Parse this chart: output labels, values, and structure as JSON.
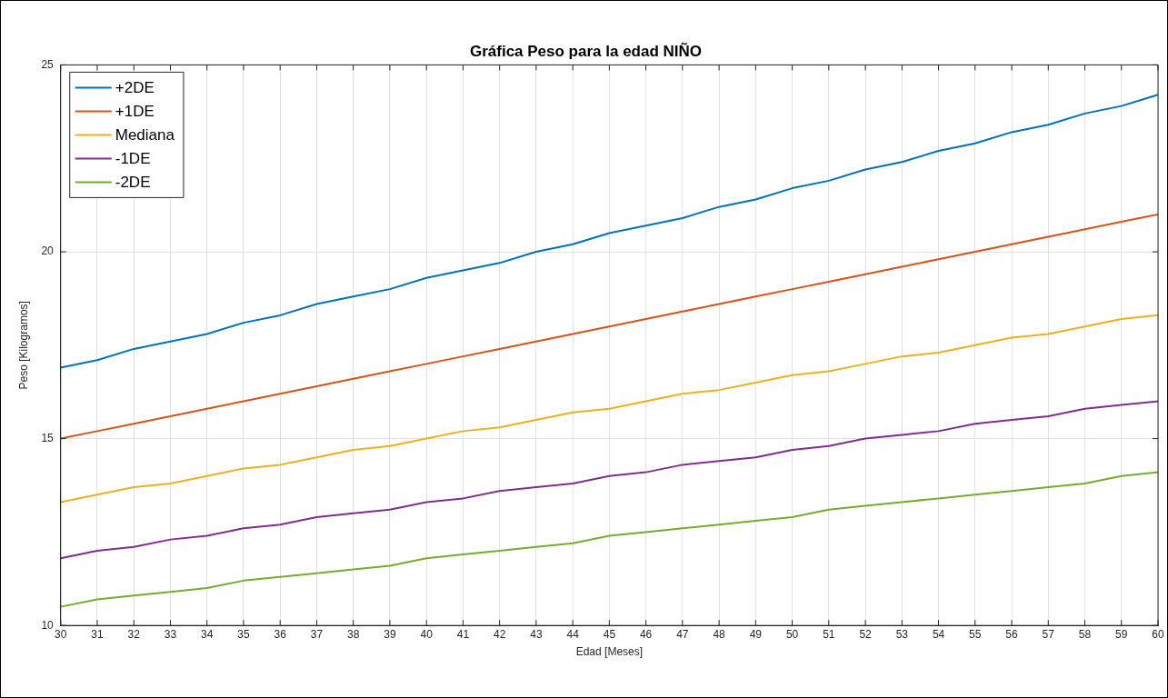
{
  "chart_data": {
    "type": "line",
    "title": "Gráfica Peso para la edad NIÑO",
    "xlabel": "Edad [Meses]",
    "ylabel": "Peso [Kilogramos]",
    "x": [
      30,
      31,
      32,
      33,
      34,
      35,
      36,
      37,
      38,
      39,
      40,
      41,
      42,
      43,
      44,
      45,
      46,
      47,
      48,
      49,
      50,
      51,
      52,
      53,
      54,
      55,
      56,
      57,
      58,
      59,
      60
    ],
    "series": [
      {
        "name": "+2DE",
        "color": "#0072bd",
        "values": [
          16.9,
          17.1,
          17.4,
          17.6,
          17.8,
          18.1,
          18.3,
          18.6,
          18.8,
          19.0,
          19.3,
          19.5,
          19.7,
          20.0,
          20.2,
          20.5,
          20.7,
          20.9,
          21.2,
          21.4,
          21.7,
          21.9,
          22.2,
          22.4,
          22.7,
          22.9,
          23.2,
          23.4,
          23.7,
          23.9,
          24.2
        ]
      },
      {
        "name": "+1DE",
        "color": "#d95319",
        "values": [
          15.0,
          15.2,
          15.4,
          15.6,
          15.8,
          16.0,
          16.2,
          16.4,
          16.6,
          16.8,
          17.0,
          17.2,
          17.4,
          17.6,
          17.8,
          18.0,
          18.2,
          18.4,
          18.6,
          18.8,
          19.0,
          19.2,
          19.4,
          19.6,
          19.8,
          20.0,
          20.2,
          20.4,
          20.6,
          20.8,
          21.0
        ]
      },
      {
        "name": "Mediana",
        "color": "#edb120",
        "values": [
          13.3,
          13.5,
          13.7,
          13.8,
          14.0,
          14.2,
          14.3,
          14.5,
          14.7,
          14.8,
          15.0,
          15.2,
          15.3,
          15.5,
          15.7,
          15.8,
          16.0,
          16.2,
          16.3,
          16.5,
          16.7,
          16.8,
          17.0,
          17.2,
          17.3,
          17.5,
          17.7,
          17.8,
          18.0,
          18.2,
          18.3
        ]
      },
      {
        "name": "-1DE",
        "color": "#7e2f8e",
        "values": [
          11.8,
          12.0,
          12.1,
          12.3,
          12.4,
          12.6,
          12.7,
          12.9,
          13.0,
          13.1,
          13.3,
          13.4,
          13.6,
          13.7,
          13.8,
          14.0,
          14.1,
          14.3,
          14.4,
          14.5,
          14.7,
          14.8,
          15.0,
          15.1,
          15.2,
          15.4,
          15.5,
          15.6,
          15.8,
          15.9,
          16.0
        ]
      },
      {
        "name": "-2DE",
        "color": "#77ac30",
        "values": [
          10.5,
          10.7,
          10.8,
          10.9,
          11.0,
          11.2,
          11.3,
          11.4,
          11.5,
          11.6,
          11.8,
          11.9,
          12.0,
          12.1,
          12.2,
          12.4,
          12.5,
          12.6,
          12.7,
          12.8,
          12.9,
          13.1,
          13.2,
          13.3,
          13.4,
          13.5,
          13.6,
          13.7,
          13.8,
          14.0,
          14.1
        ]
      }
    ],
    "xlim": [
      30,
      60
    ],
    "xticks": [
      30,
      31,
      32,
      33,
      34,
      35,
      36,
      37,
      38,
      39,
      40,
      41,
      42,
      43,
      44,
      45,
      46,
      47,
      48,
      49,
      50,
      51,
      52,
      53,
      54,
      55,
      56,
      57,
      58,
      59,
      60
    ],
    "ylim": [
      10,
      25
    ],
    "yticks": [
      10,
      15,
      20,
      25
    ],
    "grid": true,
    "legend": "top left",
    "marker": "none",
    "line_style": "solid"
  }
}
